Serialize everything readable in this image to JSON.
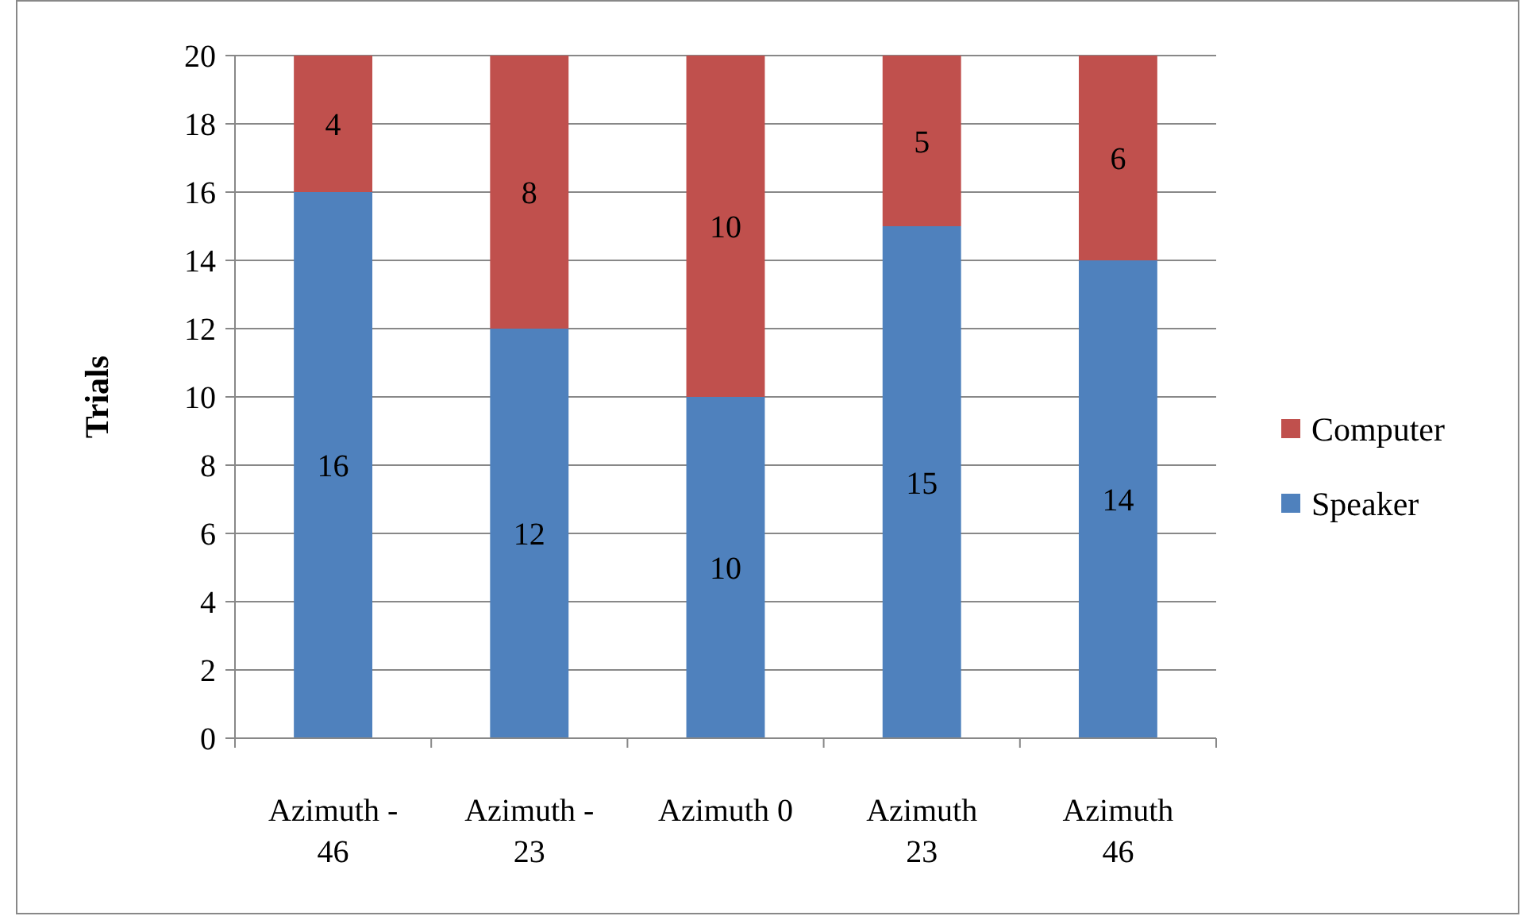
{
  "chart_data": {
    "type": "bar",
    "ylabel": "Trials",
    "categories": [
      "Azimuth -46",
      "Azimuth -23",
      "Azimuth 0",
      "Azimuth 23",
      "Azimuth 46"
    ],
    "stacked": true,
    "series": [
      {
        "name": "Speaker",
        "color": "#4f81bd",
        "values": [
          16,
          12,
          10,
          15,
          14
        ]
      },
      {
        "name": "Computer",
        "color": "#c0504d",
        "values": [
          4,
          8,
          10,
          5,
          6
        ]
      }
    ],
    "ylim": [
      0,
      20
    ],
    "yticks": [
      0,
      2,
      4,
      6,
      8,
      10,
      12,
      14,
      16,
      18,
      20
    ],
    "grid": "y",
    "legend": "right",
    "data_labels": true
  }
}
